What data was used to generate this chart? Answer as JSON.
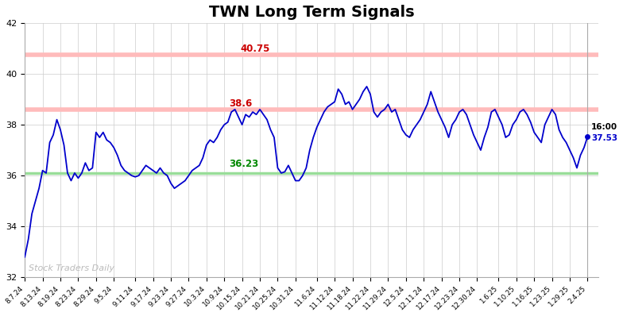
{
  "title": "TWN Long Term Signals",
  "title_fontsize": 14,
  "title_fontweight": "bold",
  "ylim": [
    32,
    42
  ],
  "yticks": [
    32,
    34,
    36,
    38,
    40,
    42
  ],
  "line_color": "#0000cc",
  "line_width": 1.3,
  "hline_upper_val": 40.75,
  "hline_upper_color": "#ffbbbb",
  "hline_upper_label_color": "#cc0000",
  "hline_mid_val": 38.6,
  "hline_mid_color": "#ffbbbb",
  "hline_mid_label_color": "#cc0000",
  "hline_lower_val": 36.23,
  "hline_lower_color": "#99dd99",
  "hline_lower_label_color": "#008800",
  "hline_green_val": 36.1,
  "watermark_text": "Stock Traders Daily",
  "watermark_color": "#bbbbbb",
  "end_label_price": "37.53",
  "end_label_time": "16:00",
  "end_label_color_time": "#000000",
  "end_label_color_price": "#0000cc",
  "bg_color": "#ffffff",
  "grid_color": "#cccccc",
  "xtick_labels": [
    "8.7.24",
    "8.13.24",
    "8.19.24",
    "8.23.24",
    "8.29.24",
    "9.5.24",
    "9.11.24",
    "9.17.24",
    "9.23.24",
    "9.27.24",
    "10.3.24",
    "10.9.24",
    "10.15.24",
    "10.21.24",
    "10.25.24",
    "10.31.24",
    "11.6.24",
    "11.12.24",
    "11.18.24",
    "11.22.24",
    "11.29.24",
    "12.5.24",
    "12.11.24",
    "12.17.24",
    "12.23.24",
    "12.30.24",
    "1.6.25",
    "1.10.25",
    "1.16.25",
    "1.23.25",
    "1.29.25",
    "2.4.25"
  ],
  "prices": [
    32.8,
    33.5,
    34.5,
    35.0,
    35.5,
    36.2,
    36.1,
    37.3,
    37.6,
    38.2,
    37.8,
    37.2,
    36.1,
    35.8,
    36.1,
    35.9,
    36.1,
    36.5,
    36.2,
    36.3,
    37.7,
    37.5,
    37.7,
    37.4,
    37.3,
    37.1,
    36.8,
    36.4,
    36.2,
    36.1,
    36.0,
    35.95,
    36.0,
    36.2,
    36.4,
    36.3,
    36.2,
    36.1,
    36.3,
    36.1,
    36.0,
    35.7,
    35.5,
    35.6,
    35.7,
    35.8,
    36.0,
    36.2,
    36.3,
    36.4,
    36.7,
    37.2,
    37.4,
    37.3,
    37.5,
    37.8,
    38.0,
    38.1,
    38.5,
    38.6,
    38.3,
    38.0,
    38.4,
    38.3,
    38.5,
    38.4,
    38.6,
    38.4,
    38.2,
    37.8,
    37.5,
    36.3,
    36.1,
    36.15,
    36.4,
    36.1,
    35.8,
    35.8,
    36.0,
    36.3,
    37.0,
    37.5,
    37.9,
    38.2,
    38.5,
    38.7,
    38.8,
    38.9,
    39.4,
    39.2,
    38.8,
    38.9,
    38.6,
    38.8,
    39.0,
    39.3,
    39.5,
    39.2,
    38.5,
    38.3,
    38.5,
    38.6,
    38.8,
    38.5,
    38.6,
    38.2,
    37.8,
    37.6,
    37.5,
    37.8,
    38.0,
    38.2,
    38.5,
    38.8,
    39.3,
    38.9,
    38.5,
    38.2,
    37.9,
    37.5,
    38.0,
    38.2,
    38.5,
    38.6,
    38.4,
    38.0,
    37.6,
    37.3,
    37.0,
    37.5,
    37.9,
    38.5,
    38.6,
    38.3,
    38.0,
    37.5,
    37.6,
    38.0,
    38.2,
    38.5,
    38.6,
    38.4,
    38.1,
    37.7,
    37.5,
    37.3,
    38.0,
    38.3,
    38.6,
    38.4,
    37.8,
    37.5,
    37.3,
    37.0,
    36.7,
    36.3,
    36.8,
    37.1,
    37.53
  ]
}
